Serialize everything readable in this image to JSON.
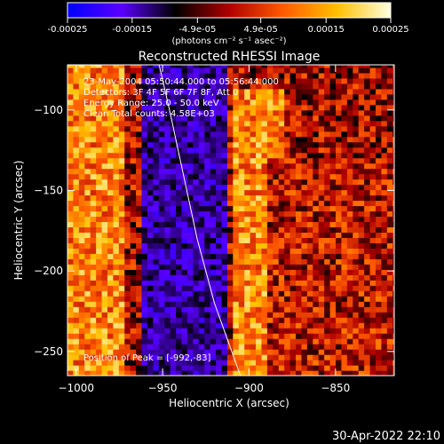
{
  "colorbar": {
    "tick_labels": [
      "-0.00025",
      "-0.00015",
      "-4.9e-05",
      "4.9e-05",
      "0.00015",
      "0.00025"
    ],
    "tick_values": [
      -0.00025,
      -0.00015,
      -4.9e-05,
      4.9e-05,
      0.00015,
      0.00025
    ],
    "range": [
      -0.00025,
      0.00025
    ],
    "unit_label": "(photons cm⁻² s⁻¹ asec⁻²)",
    "colormap": [
      "#0000ff",
      "#5a00ff",
      "#000000",
      "#b00000",
      "#ff5a00",
      "#ffc000",
      "#ffffe0"
    ]
  },
  "chart_data": {
    "type": "heatmap",
    "title": "Reconstructed RHESSI Image",
    "xlabel": "Heliocentric X (arcsec)",
    "ylabel": "Heliocentric Y (arcsec)",
    "xlim": [
      -1005,
      -816
    ],
    "ylim": [
      -265,
      -72
    ],
    "x_ticks": [
      -1000,
      -950,
      -900,
      -850
    ],
    "x_tick_labels": [
      "−1000",
      "−950",
      "−900",
      "−850"
    ],
    "y_ticks": [
      -250,
      -200,
      -150,
      -100
    ],
    "y_tick_labels": [
      "−250",
      "−200",
      "−150",
      "−100"
    ],
    "limb_curve": [
      [
        -952,
        -72
      ],
      [
        -946,
        -100
      ],
      [
        -938,
        -140
      ],
      [
        -930,
        -180
      ],
      [
        -920,
        -220
      ],
      [
        -905,
        -265
      ]
    ],
    "annotations": [
      "23-May-2004 05:50:44.000 to 05:56:44.000",
      "Detectors: 3F 4F 5F 6F 7F 8F, Att 0",
      "Energy Range: 25.0 - 50.0 keV",
      "Clean     Total counts: 4.58E+03"
    ],
    "peak_label": "Position of Peak = [-992,-83]",
    "peak": [
      -992,
      -83
    ],
    "bright_regions": [
      {
        "x_range": [
          -1005,
          -975
        ],
        "y_range": [
          -265,
          -72
        ],
        "level": "high"
      },
      {
        "x_range": [
          -910,
          -880
        ],
        "y_range": [
          -265,
          -90
        ],
        "level": "high"
      },
      {
        "x_range": [
          -890,
          -816
        ],
        "y_range": [
          -265,
          -130
        ],
        "level": "medium"
      }
    ],
    "dim_regions": [
      {
        "x_range": [
          -965,
          -915
        ],
        "y_range": [
          -265,
          -72
        ],
        "level": "low"
      }
    ]
  },
  "footer": {
    "timestamp": "30-Apr-2022 22:10"
  }
}
